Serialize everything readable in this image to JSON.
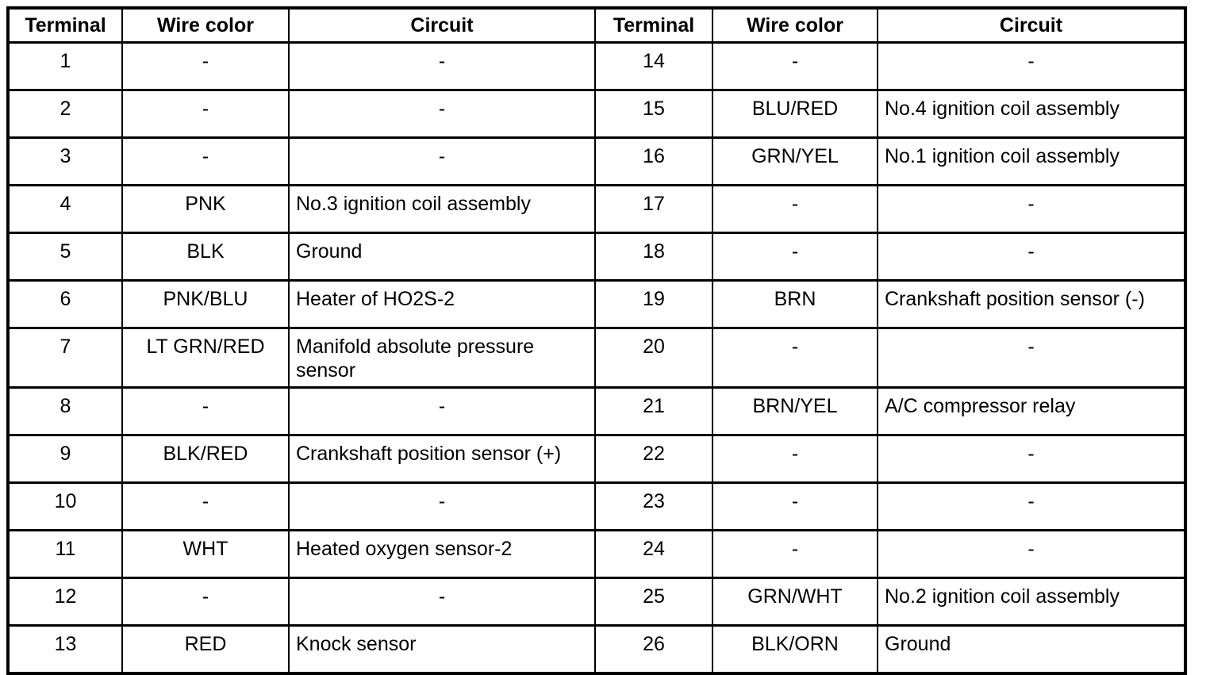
{
  "page": {
    "background_color": "#ffffff",
    "border_color": "#000000",
    "text_color": "#000000"
  },
  "table": {
    "headers": [
      "Terminal",
      "Wire color",
      "Circuit"
    ],
    "empty_marker": "-",
    "left_rows": [
      {
        "terminal": "1",
        "wire": "-",
        "circuit": "-"
      },
      {
        "terminal": "2",
        "wire": "-",
        "circuit": "-"
      },
      {
        "terminal": "3",
        "wire": "-",
        "circuit": "-"
      },
      {
        "terminal": "4",
        "wire": "PNK",
        "circuit": "No.3 ignition coil assembly"
      },
      {
        "terminal": "5",
        "wire": "BLK",
        "circuit": "Ground"
      },
      {
        "terminal": "6",
        "wire": "PNK/BLU",
        "circuit": "Heater of HO2S-2"
      },
      {
        "terminal": "7",
        "wire": "LT GRN/RED",
        "circuit": "Manifold absolute pressure sensor"
      },
      {
        "terminal": "8",
        "wire": "-",
        "circuit": "-"
      },
      {
        "terminal": "9",
        "wire": "BLK/RED",
        "circuit": "Crankshaft position sensor (+)"
      },
      {
        "terminal": "10",
        "wire": "-",
        "circuit": "-"
      },
      {
        "terminal": "11",
        "wire": "WHT",
        "circuit": "Heated oxygen sensor-2"
      },
      {
        "terminal": "12",
        "wire": "-",
        "circuit": "-"
      },
      {
        "terminal": "13",
        "wire": "RED",
        "circuit": "Knock sensor"
      }
    ],
    "right_rows": [
      {
        "terminal": "14",
        "wire": "-",
        "circuit": "-"
      },
      {
        "terminal": "15",
        "wire": "BLU/RED",
        "circuit": "No.4 ignition coil assembly"
      },
      {
        "terminal": "16",
        "wire": "GRN/YEL",
        "circuit": "No.1 ignition coil assembly"
      },
      {
        "terminal": "17",
        "wire": "-",
        "circuit": "-"
      },
      {
        "terminal": "18",
        "wire": "-",
        "circuit": "-"
      },
      {
        "terminal": "19",
        "wire": "BRN",
        "circuit": "Crankshaft position sensor (-)"
      },
      {
        "terminal": "20",
        "wire": "-",
        "circuit": "-"
      },
      {
        "terminal": "21",
        "wire": "BRN/YEL",
        "circuit": "A/C compressor relay"
      },
      {
        "terminal": "22",
        "wire": "-",
        "circuit": "-"
      },
      {
        "terminal": "23",
        "wire": "-",
        "circuit": "-"
      },
      {
        "terminal": "24",
        "wire": "-",
        "circuit": "-"
      },
      {
        "terminal": "25",
        "wire": "GRN/WHT",
        "circuit": "No.2 ignition coil assembly"
      },
      {
        "terminal": "26",
        "wire": "BLK/ORN",
        "circuit": "Ground"
      }
    ]
  }
}
